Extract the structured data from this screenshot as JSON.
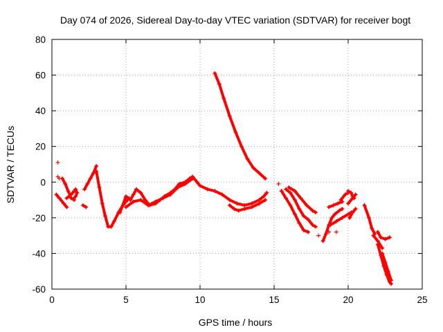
{
  "chart_data": {
    "type": "scatter",
    "title": "Day 074 of 2026, Sidereal Day-to-day VTEC variation (SDTVAR) for receiver bogt",
    "xlabel": "GPS time / hours",
    "ylabel": "SDTVAR / TECUs",
    "xlim": [
      0,
      25
    ],
    "ylim": [
      -60,
      80
    ],
    "x_ticks": [
      0,
      5,
      10,
      15,
      20,
      25
    ],
    "y_ticks": [
      -60,
      -40,
      -20,
      0,
      20,
      40,
      60,
      80
    ],
    "grid": true,
    "marker": "+",
    "color": "#ff0000",
    "series": [
      {
        "name": "isolated",
        "points": [
          [
            0.4,
            11
          ],
          [
            0.4,
            3
          ],
          [
            0.5,
            2
          ],
          [
            18.0,
            -30
          ],
          [
            18.7,
            -28
          ],
          [
            19.2,
            -28
          ],
          [
            15.3,
            -1
          ],
          [
            15.5,
            -5
          ]
        ]
      },
      {
        "name": "seg-early-a",
        "points": [
          [
            0.3,
            -7
          ],
          [
            0.5,
            -9
          ],
          [
            0.8,
            -12
          ],
          [
            1.0,
            -14
          ]
        ]
      },
      {
        "name": "seg-early-b",
        "points": [
          [
            0.7,
            2
          ],
          [
            0.9,
            -1
          ],
          [
            1.1,
            -5
          ],
          [
            1.3,
            -9
          ],
          [
            1.5,
            -10
          ]
        ]
      },
      {
        "name": "seg-early-c",
        "points": [
          [
            1.0,
            -9
          ],
          [
            1.3,
            -7
          ],
          [
            1.5,
            -5
          ],
          [
            1.6,
            -4
          ],
          [
            1.7,
            -6
          ],
          [
            1.6,
            -8
          ],
          [
            1.5,
            -9
          ]
        ]
      },
      {
        "name": "seg-early-d",
        "points": [
          [
            2.1,
            -13
          ],
          [
            2.3,
            -14
          ]
        ]
      },
      {
        "name": "seg-main-rise",
        "points": [
          [
            2.2,
            -4
          ],
          [
            2.4,
            -1
          ],
          [
            2.6,
            2
          ],
          [
            2.8,
            5
          ],
          [
            3.0,
            9
          ]
        ]
      },
      {
        "name": "seg-main-fall",
        "points": [
          [
            3.0,
            6
          ],
          [
            3.2,
            -3
          ],
          [
            3.4,
            -12
          ],
          [
            3.6,
            -19
          ],
          [
            3.8,
            -25
          ],
          [
            4.0,
            -25
          ],
          [
            4.2,
            -22
          ],
          [
            4.5,
            -17
          ],
          [
            4.8,
            -13
          ],
          [
            5.0,
            -11
          ],
          [
            5.2,
            -9
          ]
        ]
      },
      {
        "name": "seg-main-body",
        "points": [
          [
            4.6,
            -17
          ],
          [
            5.0,
            -8
          ],
          [
            5.3,
            -10
          ],
          [
            5.5,
            -7
          ],
          [
            5.7,
            -4
          ],
          [
            6.0,
            -6
          ],
          [
            6.3,
            -10
          ],
          [
            6.6,
            -13
          ],
          [
            7.0,
            -12
          ],
          [
            7.3,
            -10
          ],
          [
            7.6,
            -8
          ],
          [
            8.0,
            -6
          ],
          [
            8.3,
            -4
          ],
          [
            8.6,
            -1
          ],
          [
            9.0,
            0
          ],
          [
            9.3,
            2
          ],
          [
            9.5,
            3
          ],
          [
            9.8,
            0
          ],
          [
            10.0,
            -2
          ],
          [
            10.5,
            -4
          ],
          [
            11.0,
            -5
          ],
          [
            11.5,
            -7
          ],
          [
            12.0,
            -10
          ],
          [
            12.5,
            -12
          ],
          [
            13.0,
            -13
          ],
          [
            13.5,
            -12
          ],
          [
            14.0,
            -10
          ],
          [
            14.3,
            -8
          ],
          [
            14.5,
            -6
          ]
        ]
      },
      {
        "name": "seg-main-low",
        "points": [
          [
            5.0,
            -14
          ],
          [
            5.5,
            -11
          ],
          [
            6.0,
            -10
          ],
          [
            6.5,
            -13
          ],
          [
            7.0,
            -11
          ],
          [
            7.5,
            -9
          ],
          [
            8.0,
            -7
          ],
          [
            8.5,
            -3
          ],
          [
            9.0,
            -1
          ],
          [
            9.5,
            2
          ]
        ]
      },
      {
        "name": "seg-main-dip",
        "points": [
          [
            12.0,
            -13
          ],
          [
            12.3,
            -15
          ],
          [
            12.6,
            -16
          ],
          [
            13.0,
            -15
          ],
          [
            13.5,
            -14
          ],
          [
            14.0,
            -12
          ],
          [
            14.4,
            -10
          ]
        ]
      },
      {
        "name": "seg-steep",
        "points": [
          [
            11.0,
            61
          ],
          [
            11.3,
            55
          ],
          [
            11.6,
            47
          ],
          [
            12.0,
            37
          ],
          [
            12.4,
            28
          ],
          [
            12.8,
            20
          ],
          [
            13.2,
            13
          ],
          [
            13.6,
            8
          ],
          [
            14.0,
            5
          ],
          [
            14.4,
            2
          ]
        ]
      },
      {
        "name": "seg-late-a",
        "points": [
          [
            15.5,
            -5
          ],
          [
            15.8,
            -9
          ],
          [
            16.1,
            -13
          ],
          [
            16.4,
            -18
          ],
          [
            16.7,
            -23
          ],
          [
            17.0,
            -27
          ],
          [
            17.3,
            -28
          ]
        ]
      },
      {
        "name": "seg-late-b",
        "points": [
          [
            15.8,
            -4
          ],
          [
            16.1,
            -6
          ],
          [
            16.4,
            -10
          ],
          [
            16.7,
            -15
          ],
          [
            17.0,
            -19
          ],
          [
            17.3,
            -21
          ],
          [
            17.6,
            -24
          ],
          [
            17.8,
            -25
          ]
        ]
      },
      {
        "name": "seg-late-c",
        "points": [
          [
            16.0,
            -3
          ],
          [
            16.4,
            -5
          ],
          [
            16.8,
            -9
          ],
          [
            17.2,
            -13
          ],
          [
            17.6,
            -16
          ],
          [
            17.8,
            -17
          ]
        ]
      },
      {
        "name": "seg-late-d",
        "points": [
          [
            18.3,
            -33
          ],
          [
            18.5,
            -29
          ],
          [
            18.7,
            -24
          ],
          [
            18.9,
            -20
          ],
          [
            19.1,
            -18
          ],
          [
            19.4,
            -16
          ],
          [
            19.6,
            -15
          ]
        ]
      },
      {
        "name": "seg-late-e",
        "points": [
          [
            18.8,
            -24
          ],
          [
            19.2,
            -22
          ],
          [
            19.6,
            -20
          ],
          [
            20.0,
            -18
          ],
          [
            20.2,
            -17
          ]
        ]
      },
      {
        "name": "seg-late-f",
        "points": [
          [
            18.7,
            -14
          ],
          [
            19.0,
            -13
          ],
          [
            19.3,
            -12
          ],
          [
            19.6,
            -11
          ]
        ]
      },
      {
        "name": "seg-late-g",
        "points": [
          [
            19.5,
            -10
          ],
          [
            19.8,
            -7
          ],
          [
            20.0,
            -6
          ]
        ]
      },
      {
        "name": "seg-late-h",
        "points": [
          [
            20.0,
            -12
          ],
          [
            20.3,
            -9
          ],
          [
            20.5,
            -7
          ]
        ]
      },
      {
        "name": "seg-late-i",
        "points": [
          [
            20.0,
            -5
          ],
          [
            20.2,
            -6
          ],
          [
            20.3,
            -8
          ],
          [
            20.4,
            -9
          ]
        ]
      },
      {
        "name": "seg-late-j",
        "points": [
          [
            20.1,
            -20
          ],
          [
            20.3,
            -17
          ],
          [
            20.5,
            -15
          ]
        ]
      },
      {
        "name": "seg-end-a",
        "points": [
          [
            21.1,
            -13
          ],
          [
            21.4,
            -20
          ],
          [
            21.6,
            -26
          ],
          [
            21.8,
            -29
          ]
        ]
      },
      {
        "name": "seg-end-b",
        "points": [
          [
            21.7,
            -30
          ],
          [
            22.0,
            -33
          ],
          [
            22.3,
            -37
          ]
        ]
      },
      {
        "name": "seg-end-c",
        "points": [
          [
            22.0,
            -28
          ],
          [
            22.2,
            -31
          ],
          [
            22.5,
            -32
          ],
          [
            22.8,
            -31
          ]
        ]
      },
      {
        "name": "seg-end-d",
        "points": [
          [
            22.0,
            -35
          ],
          [
            22.2,
            -41
          ],
          [
            22.4,
            -47
          ],
          [
            22.6,
            -52
          ],
          [
            22.8,
            -56
          ],
          [
            22.9,
            -57
          ]
        ]
      },
      {
        "name": "seg-end-e",
        "points": [
          [
            22.3,
            -40
          ],
          [
            22.5,
            -45
          ],
          [
            22.7,
            -50
          ],
          [
            22.9,
            -55
          ]
        ]
      }
    ]
  }
}
